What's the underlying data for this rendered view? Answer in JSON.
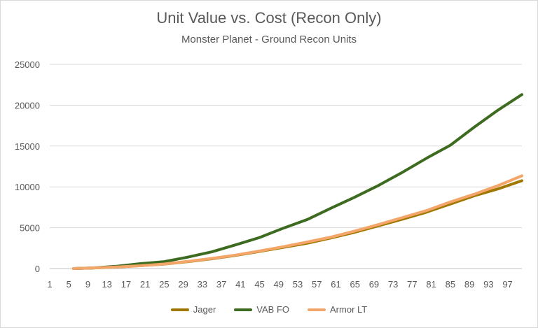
{
  "chart_data": {
    "type": "line",
    "title": "Unit Value vs. Cost (Recon Only)",
    "subtitle": "Monster Planet - Ground Recon Units",
    "xlabel": "",
    "ylabel": "",
    "x_start": 1,
    "x_end": 100,
    "x_tick_labels": [
      "1",
      "5",
      "9",
      "13",
      "17",
      "21",
      "25",
      "29",
      "33",
      "37",
      "41",
      "45",
      "49",
      "53",
      "57",
      "61",
      "65",
      "69",
      "73",
      "77",
      "81",
      "85",
      "89",
      "93",
      "97"
    ],
    "y_tick_labels": [
      "0",
      "5000",
      "10000",
      "15000",
      "20000",
      "25000"
    ],
    "ylim": [
      0,
      25000
    ],
    "grid": true,
    "legend_position": "bottom",
    "series": [
      {
        "name": "Jager",
        "color": "#a07800",
        "x": [
          6,
          10,
          15,
          20,
          25,
          30,
          35,
          40,
          45,
          50,
          55,
          60,
          65,
          70,
          75,
          80,
          85,
          90,
          95,
          100
        ],
        "values": [
          0,
          60,
          180,
          350,
          550,
          850,
          1200,
          1620,
          2100,
          2600,
          3100,
          3750,
          4450,
          5250,
          6050,
          6900,
          7900,
          8900,
          9750,
          10750
        ]
      },
      {
        "name": "VAB FO",
        "color": "#3d6b20",
        "x": [
          6,
          10,
          15,
          20,
          25,
          30,
          35,
          40,
          45,
          50,
          55,
          60,
          65,
          70,
          75,
          80,
          85,
          90,
          95,
          100
        ],
        "values": [
          0,
          80,
          280,
          600,
          850,
          1400,
          2050,
          2900,
          3800,
          4950,
          6000,
          7400,
          8750,
          10200,
          11800,
          13500,
          15100,
          17300,
          19400,
          21300
        ]
      },
      {
        "name": "Armor LT",
        "color": "#f4a66a",
        "x": [
          6,
          10,
          15,
          20,
          25,
          30,
          35,
          40,
          45,
          50,
          55,
          60,
          65,
          70,
          75,
          80,
          85,
          90,
          95,
          100
        ],
        "values": [
          0,
          80,
          200,
          340,
          560,
          880,
          1240,
          1650,
          2150,
          2680,
          3250,
          3850,
          4600,
          5400,
          6250,
          7100,
          8150,
          9100,
          10150,
          11350
        ]
      }
    ]
  }
}
